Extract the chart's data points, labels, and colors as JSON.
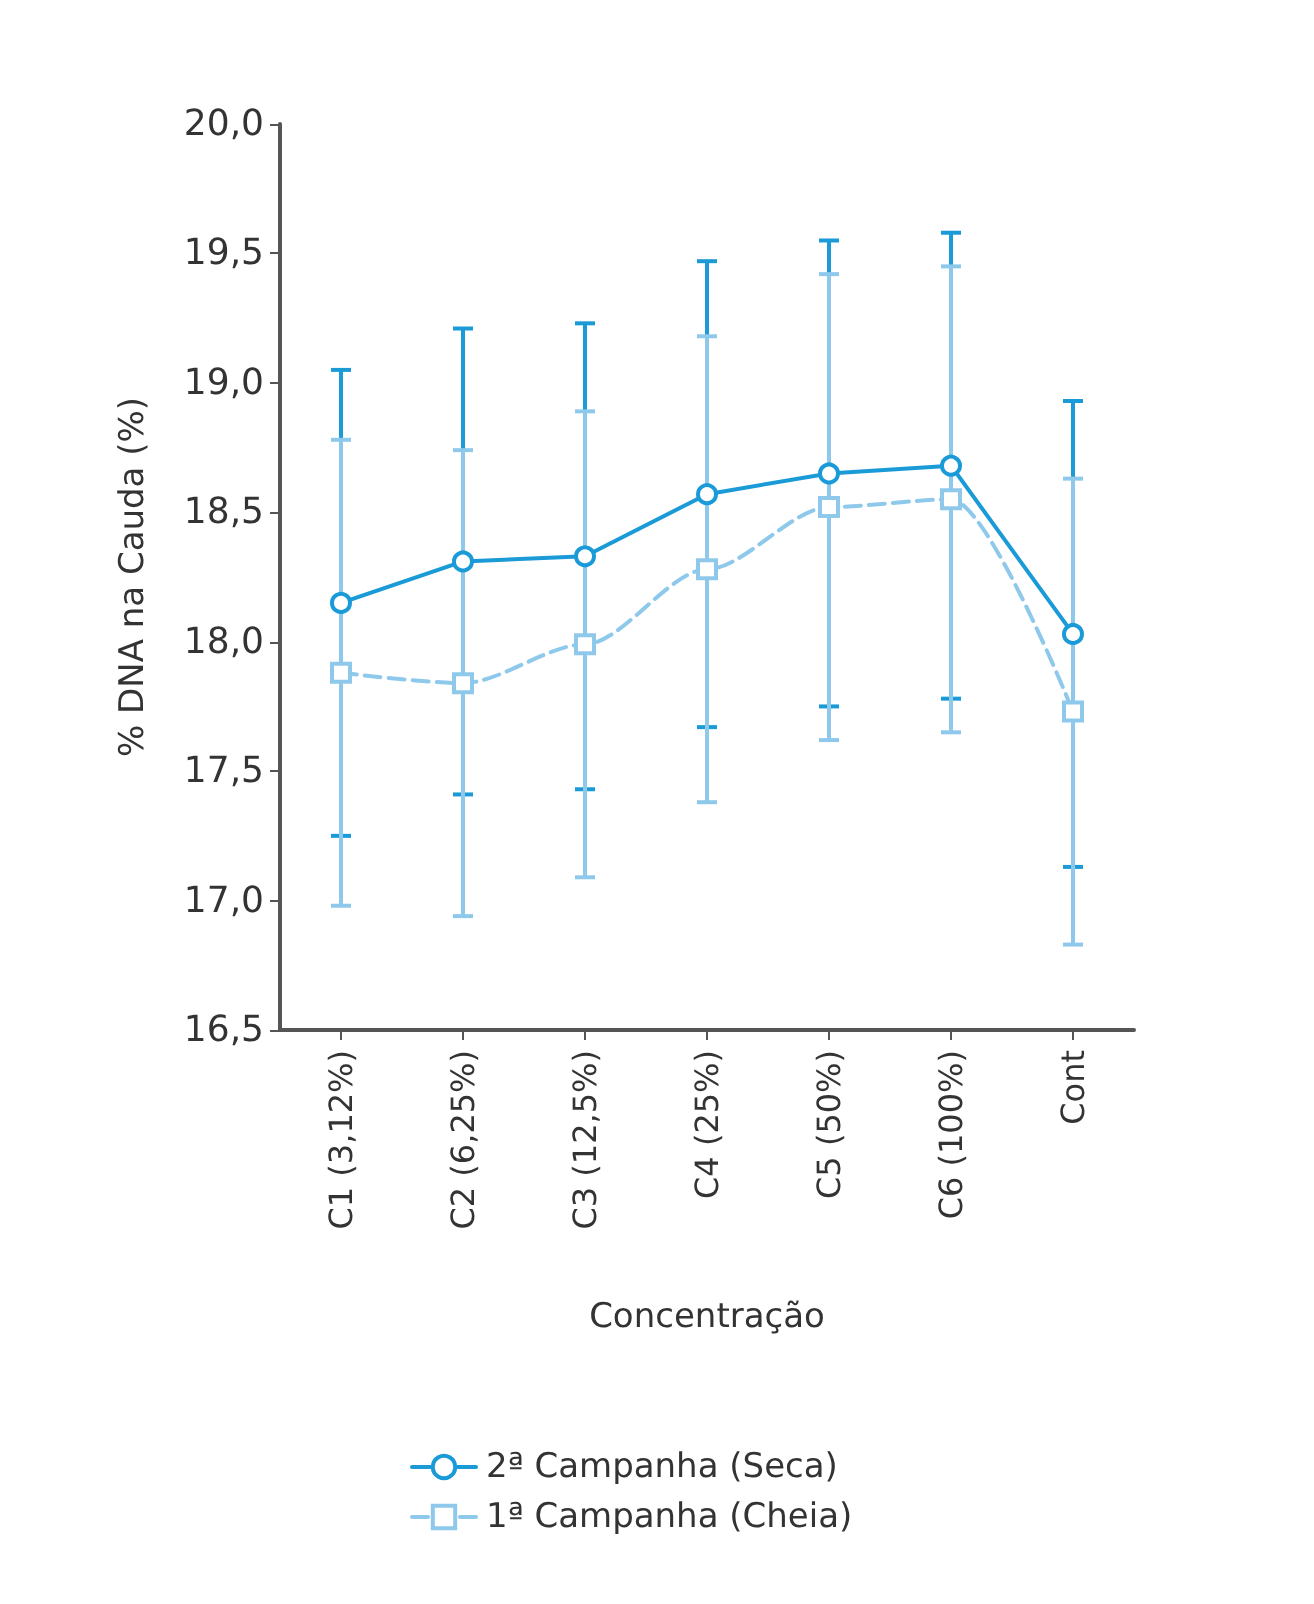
{
  "chart_data": {
    "type": "line",
    "xlabel": "Concentração",
    "ylabel": "% DNA na Cauda (%)",
    "categories": [
      "C1 (3,12%)",
      "C2 (6,25%)",
      "C3 (12,5%)",
      "C4 (25%)",
      "C5 (50%)",
      "C6 (100%)",
      "Cont"
    ],
    "series": [
      {
        "name": "2ª Campanha (Seca)",
        "color": "#1a9bd7",
        "marker": "circle",
        "line_style": "solid",
        "values": [
          18.15,
          18.31,
          18.33,
          18.57,
          18.65,
          18.68,
          18.03
        ],
        "errors": [
          0.9,
          0.9,
          0.9,
          0.9,
          0.9,
          0.9,
          0.9
        ]
      },
      {
        "name": "1ª Campanha (Cheia)",
        "color": "#8ec9ec",
        "marker": "square",
        "line_style": "dashed",
        "values": [
          17.88,
          17.84,
          17.99,
          18.28,
          18.52,
          18.55,
          17.73
        ],
        "errors": [
          0.9,
          0.9,
          0.9,
          0.9,
          0.9,
          0.9,
          0.9
        ]
      }
    ],
    "ylim": [
      16.5,
      20
    ],
    "yticks": [
      {
        "value": 16.5,
        "label": "16,5"
      },
      {
        "value": 17,
        "label": "17,0"
      },
      {
        "value": 17.5,
        "label": "17,5"
      },
      {
        "value": 18,
        "label": "18,0"
      },
      {
        "value": 18.5,
        "label": "18,5"
      },
      {
        "value": 19,
        "label": "19,0"
      },
      {
        "value": 19.5,
        "label": "19,5"
      },
      {
        "value": 20,
        "label": "20,0"
      }
    ],
    "grid": false,
    "legend": "bottom"
  }
}
